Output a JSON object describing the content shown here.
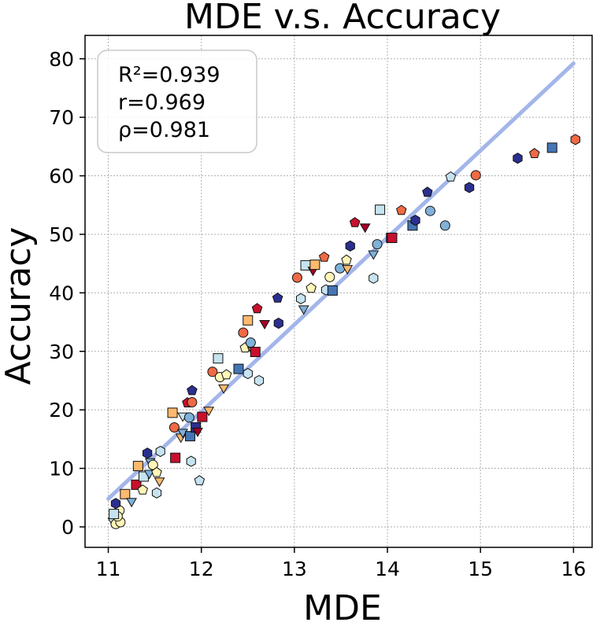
{
  "chart_data": {
    "type": "scatter",
    "title": "MDE  v.s.  Accuracy",
    "xlabel": "MDE",
    "ylabel": "Accuracy",
    "xlim": [
      10.75,
      16.2
    ],
    "ylim": [
      -3.5,
      84
    ],
    "xticks": [
      11,
      12,
      13,
      14,
      15,
      16
    ],
    "yticks": [
      0,
      10,
      20,
      30,
      40,
      50,
      60,
      70,
      80
    ],
    "grid": true,
    "stats": [
      "R²=0.939",
      "r=0.969",
      "ρ=0.981"
    ],
    "fit_line": {
      "x": [
        11.0,
        16.0
      ],
      "y": [
        4.8,
        79.2
      ],
      "color": "#a3b6ea"
    },
    "colors": {
      "navy": "#2b2f8f",
      "blue": "#4575b4",
      "light_blue": "#7fb1d9",
      "pale_blue": "#c6e3ef",
      "pale_yellow": "#fff6b8",
      "light_orange": "#fdba6e",
      "orange": "#ef6a45",
      "red": "#c8102e",
      "dark_red": "#a50026"
    },
    "points": [
      {
        "x": 11.05,
        "y": 1.0,
        "shape": "triangle-down",
        "color": "pale_blue"
      },
      {
        "x": 11.08,
        "y": 0.5,
        "shape": "circle",
        "color": "pale_yellow"
      },
      {
        "x": 11.12,
        "y": 2.8,
        "shape": "circle",
        "color": "pale_yellow"
      },
      {
        "x": 11.13,
        "y": 0.8,
        "shape": "circle",
        "color": "pale_yellow"
      },
      {
        "x": 11.1,
        "y": 1.8,
        "shape": "circle",
        "color": "pale_yellow"
      },
      {
        "x": 11.06,
        "y": 2.2,
        "shape": "square",
        "color": "pale_blue"
      },
      {
        "x": 11.08,
        "y": 4.0,
        "shape": "hexagon",
        "color": "navy"
      },
      {
        "x": 11.18,
        "y": 5.6,
        "shape": "square",
        "color": "light_orange"
      },
      {
        "x": 11.25,
        "y": 4.4,
        "shape": "triangle-down",
        "color": "light_blue"
      },
      {
        "x": 11.3,
        "y": 7.2,
        "shape": "square",
        "color": "red"
      },
      {
        "x": 11.32,
        "y": 10.4,
        "shape": "square",
        "color": "light_orange"
      },
      {
        "x": 11.37,
        "y": 6.3,
        "shape": "pentagon",
        "color": "pale_yellow"
      },
      {
        "x": 11.38,
        "y": 8.6,
        "shape": "square",
        "color": "pale_blue"
      },
      {
        "x": 11.42,
        "y": 12.6,
        "shape": "hexagon",
        "color": "navy"
      },
      {
        "x": 11.44,
        "y": 9.2,
        "shape": "triangle-down",
        "color": "light_blue"
      },
      {
        "x": 11.45,
        "y": 11.2,
        "shape": "triangle-down",
        "color": "light_blue"
      },
      {
        "x": 11.48,
        "y": 10.6,
        "shape": "circle",
        "color": "pale_yellow"
      },
      {
        "x": 11.52,
        "y": 9.3,
        "shape": "pentagon",
        "color": "pale_yellow"
      },
      {
        "x": 11.55,
        "y": 7.9,
        "shape": "triangle-down",
        "color": "light_orange"
      },
      {
        "x": 11.52,
        "y": 5.8,
        "shape": "hexagon",
        "color": "pale_blue"
      },
      {
        "x": 11.56,
        "y": 12.9,
        "shape": "hexagon",
        "color": "pale_blue"
      },
      {
        "x": 11.69,
        "y": 19.5,
        "shape": "square",
        "color": "light_orange"
      },
      {
        "x": 11.71,
        "y": 17.0,
        "shape": "circle",
        "color": "orange"
      },
      {
        "x": 11.72,
        "y": 11.8,
        "shape": "square",
        "color": "red"
      },
      {
        "x": 11.78,
        "y": 15.4,
        "shape": "triangle-down",
        "color": "light_orange"
      },
      {
        "x": 11.8,
        "y": 16.2,
        "shape": "triangle-down",
        "color": "light_blue"
      },
      {
        "x": 11.8,
        "y": 19.0,
        "shape": "triangle-down",
        "color": "pale_blue"
      },
      {
        "x": 11.85,
        "y": 21.2,
        "shape": "pentagon",
        "color": "red"
      },
      {
        "x": 11.87,
        "y": 18.7,
        "shape": "circle",
        "color": "light_blue"
      },
      {
        "x": 11.88,
        "y": 15.5,
        "shape": "square",
        "color": "blue"
      },
      {
        "x": 11.9,
        "y": 21.3,
        "shape": "circle",
        "color": "orange"
      },
      {
        "x": 11.9,
        "y": 23.3,
        "shape": "pentagon",
        "color": "navy"
      },
      {
        "x": 11.89,
        "y": 11.2,
        "shape": "hexagon",
        "color": "pale_blue"
      },
      {
        "x": 11.94,
        "y": 17.0,
        "shape": "square",
        "color": "navy"
      },
      {
        "x": 11.96,
        "y": 16.4,
        "shape": "triangle-down",
        "color": "dark_red"
      },
      {
        "x": 11.98,
        "y": 7.9,
        "shape": "pentagon",
        "color": "pale_blue"
      },
      {
        "x": 12.01,
        "y": 18.8,
        "shape": "square",
        "color": "red"
      },
      {
        "x": 12.08,
        "y": 20.0,
        "shape": "triangle-down",
        "color": "light_orange"
      },
      {
        "x": 12.12,
        "y": 26.5,
        "shape": "circle",
        "color": "orange"
      },
      {
        "x": 12.18,
        "y": 28.8,
        "shape": "square",
        "color": "pale_blue"
      },
      {
        "x": 12.2,
        "y": 25.6,
        "shape": "circle",
        "color": "pale_yellow"
      },
      {
        "x": 12.24,
        "y": 23.8,
        "shape": "triangle-down",
        "color": "light_orange"
      },
      {
        "x": 12.27,
        "y": 26.0,
        "shape": "pentagon",
        "color": "pale_yellow"
      },
      {
        "x": 12.4,
        "y": 27.0,
        "shape": "square",
        "color": "blue"
      },
      {
        "x": 12.45,
        "y": 33.2,
        "shape": "circle",
        "color": "orange"
      },
      {
        "x": 12.47,
        "y": 30.6,
        "shape": "pentagon",
        "color": "pale_yellow"
      },
      {
        "x": 12.5,
        "y": 35.3,
        "shape": "square",
        "color": "light_orange"
      },
      {
        "x": 12.5,
        "y": 26.2,
        "shape": "hexagon",
        "color": "pale_blue"
      },
      {
        "x": 12.53,
        "y": 31.5,
        "shape": "circle",
        "color": "light_blue"
      },
      {
        "x": 12.55,
        "y": 30.2,
        "shape": "triangle-down",
        "color": "orange"
      },
      {
        "x": 12.58,
        "y": 29.9,
        "shape": "square",
        "color": "red"
      },
      {
        "x": 12.6,
        "y": 37.3,
        "shape": "pentagon",
        "color": "red"
      },
      {
        "x": 12.62,
        "y": 25.0,
        "shape": "hexagon",
        "color": "pale_blue"
      },
      {
        "x": 12.68,
        "y": 34.8,
        "shape": "triangle-down",
        "color": "dark_red"
      },
      {
        "x": 12.82,
        "y": 39.1,
        "shape": "pentagon",
        "color": "navy"
      },
      {
        "x": 12.83,
        "y": 34.8,
        "shape": "hexagon",
        "color": "navy"
      },
      {
        "x": 13.03,
        "y": 42.6,
        "shape": "circle",
        "color": "orange"
      },
      {
        "x": 13.07,
        "y": 39.0,
        "shape": "hexagon",
        "color": "pale_blue"
      },
      {
        "x": 13.1,
        "y": 37.3,
        "shape": "triangle-down",
        "color": "light_blue"
      },
      {
        "x": 13.12,
        "y": 44.7,
        "shape": "square",
        "color": "pale_blue"
      },
      {
        "x": 13.18,
        "y": 40.8,
        "shape": "pentagon",
        "color": "pale_yellow"
      },
      {
        "x": 13.2,
        "y": 43.9,
        "shape": "triangle-down",
        "color": "dark_red"
      },
      {
        "x": 13.22,
        "y": 44.8,
        "shape": "square",
        "color": "light_orange"
      },
      {
        "x": 13.32,
        "y": 46.1,
        "shape": "pentagon",
        "color": "orange"
      },
      {
        "x": 13.34,
        "y": 40.5,
        "shape": "hexagon",
        "color": "pale_blue"
      },
      {
        "x": 13.38,
        "y": 42.7,
        "shape": "circle",
        "color": "pale_yellow"
      },
      {
        "x": 13.41,
        "y": 40.4,
        "shape": "square",
        "color": "blue"
      },
      {
        "x": 13.49,
        "y": 44.2,
        "shape": "circle",
        "color": "light_blue"
      },
      {
        "x": 13.56,
        "y": 45.6,
        "shape": "pentagon",
        "color": "pale_yellow"
      },
      {
        "x": 13.57,
        "y": 44.2,
        "shape": "triangle-down",
        "color": "light_orange"
      },
      {
        "x": 13.6,
        "y": 48.0,
        "shape": "hexagon",
        "color": "navy"
      },
      {
        "x": 13.65,
        "y": 52.0,
        "shape": "pentagon",
        "color": "red"
      },
      {
        "x": 13.76,
        "y": 51.3,
        "shape": "triangle-down",
        "color": "dark_red"
      },
      {
        "x": 13.85,
        "y": 42.5,
        "shape": "hexagon",
        "color": "pale_blue"
      },
      {
        "x": 13.85,
        "y": 46.7,
        "shape": "triangle-down",
        "color": "light_blue"
      },
      {
        "x": 13.89,
        "y": 48.3,
        "shape": "circle",
        "color": "light_blue"
      },
      {
        "x": 13.92,
        "y": 54.2,
        "shape": "square",
        "color": "pale_blue"
      },
      {
        "x": 14.04,
        "y": 49.4,
        "shape": "square",
        "color": "navy"
      },
      {
        "x": 14.05,
        "y": 49.4,
        "shape": "square",
        "color": "red"
      },
      {
        "x": 14.15,
        "y": 54.1,
        "shape": "pentagon",
        "color": "orange"
      },
      {
        "x": 14.27,
        "y": 51.5,
        "shape": "square",
        "color": "blue"
      },
      {
        "x": 14.3,
        "y": 52.4,
        "shape": "hexagon",
        "color": "navy"
      },
      {
        "x": 14.43,
        "y": 57.2,
        "shape": "pentagon",
        "color": "navy"
      },
      {
        "x": 14.46,
        "y": 54.0,
        "shape": "circle",
        "color": "light_blue"
      },
      {
        "x": 14.62,
        "y": 51.5,
        "shape": "circle",
        "color": "light_blue"
      },
      {
        "x": 14.68,
        "y": 59.8,
        "shape": "pentagon",
        "color": "pale_blue"
      },
      {
        "x": 14.88,
        "y": 58.0,
        "shape": "hexagon",
        "color": "navy"
      },
      {
        "x": 14.95,
        "y": 60.1,
        "shape": "circle",
        "color": "orange"
      },
      {
        "x": 15.4,
        "y": 63.0,
        "shape": "hexagon",
        "color": "navy"
      },
      {
        "x": 15.58,
        "y": 63.8,
        "shape": "pentagon",
        "color": "orange"
      },
      {
        "x": 15.77,
        "y": 64.8,
        "shape": "square",
        "color": "blue"
      },
      {
        "x": 16.02,
        "y": 66.2,
        "shape": "hexagon",
        "color": "orange"
      }
    ]
  }
}
